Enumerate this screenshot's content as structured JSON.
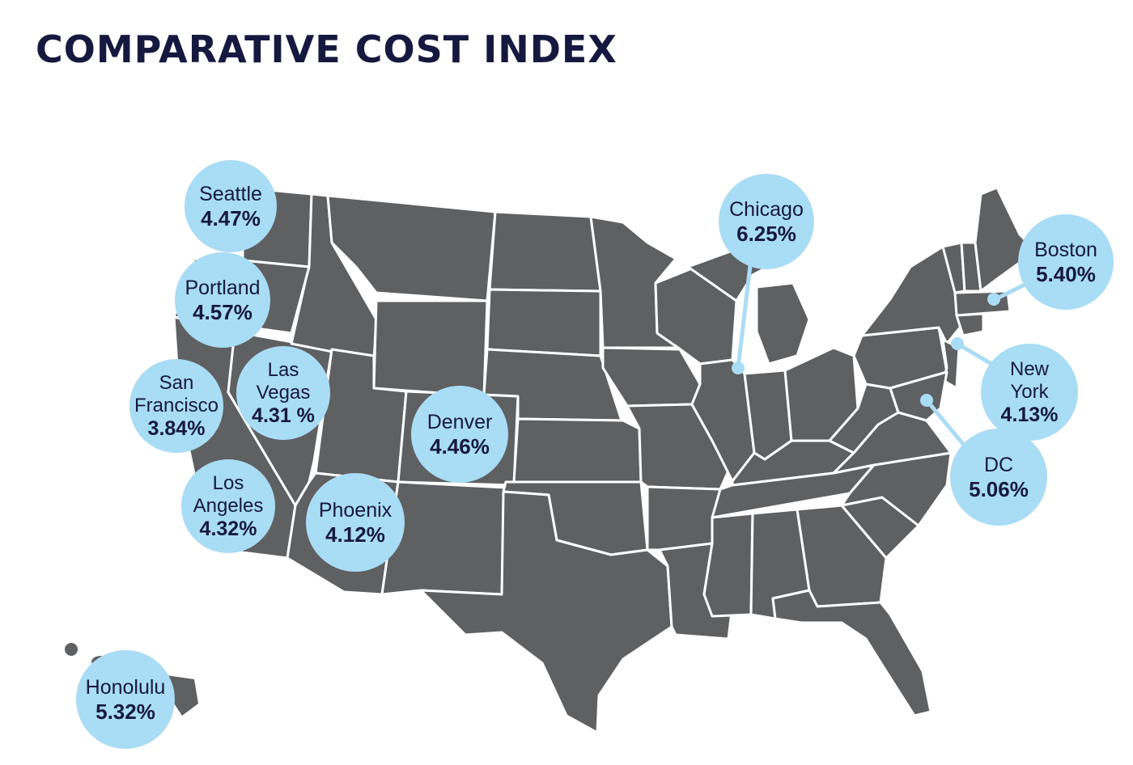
{
  "title": "COMPARATIVE COST INDEX",
  "colors": {
    "title": "#16193f",
    "bubble": "#a9dcf5",
    "land": "#5f6062",
    "border": "#ffffff"
  },
  "cities": [
    {
      "id": "seattle",
      "name": "Seattle",
      "value": "4.47%"
    },
    {
      "id": "portland",
      "name": "Portland",
      "value": "4.57%"
    },
    {
      "id": "san-francisco",
      "name_lines": [
        "San",
        "Francisco"
      ],
      "value": "3.84%"
    },
    {
      "id": "las-vegas",
      "name_lines": [
        "Las",
        "Vegas"
      ],
      "value": "4.31 %"
    },
    {
      "id": "denver",
      "name": "Denver",
      "value": "4.46%"
    },
    {
      "id": "los-angeles",
      "name_lines": [
        "Los",
        "Angeles"
      ],
      "value": "4.32%"
    },
    {
      "id": "phoenix",
      "name": "Phoenix",
      "value": "4.12%"
    },
    {
      "id": "chicago",
      "name": "Chicago",
      "value": "6.25%"
    },
    {
      "id": "boston",
      "name": "Boston",
      "value": "5.40%"
    },
    {
      "id": "new-york",
      "name_lines": [
        "New",
        "York"
      ],
      "value": "4.13%"
    },
    {
      "id": "dc",
      "name": "DC",
      "value": "5.06%"
    },
    {
      "id": "honolulu",
      "name": "Honolulu",
      "value": "5.32%"
    }
  ]
}
